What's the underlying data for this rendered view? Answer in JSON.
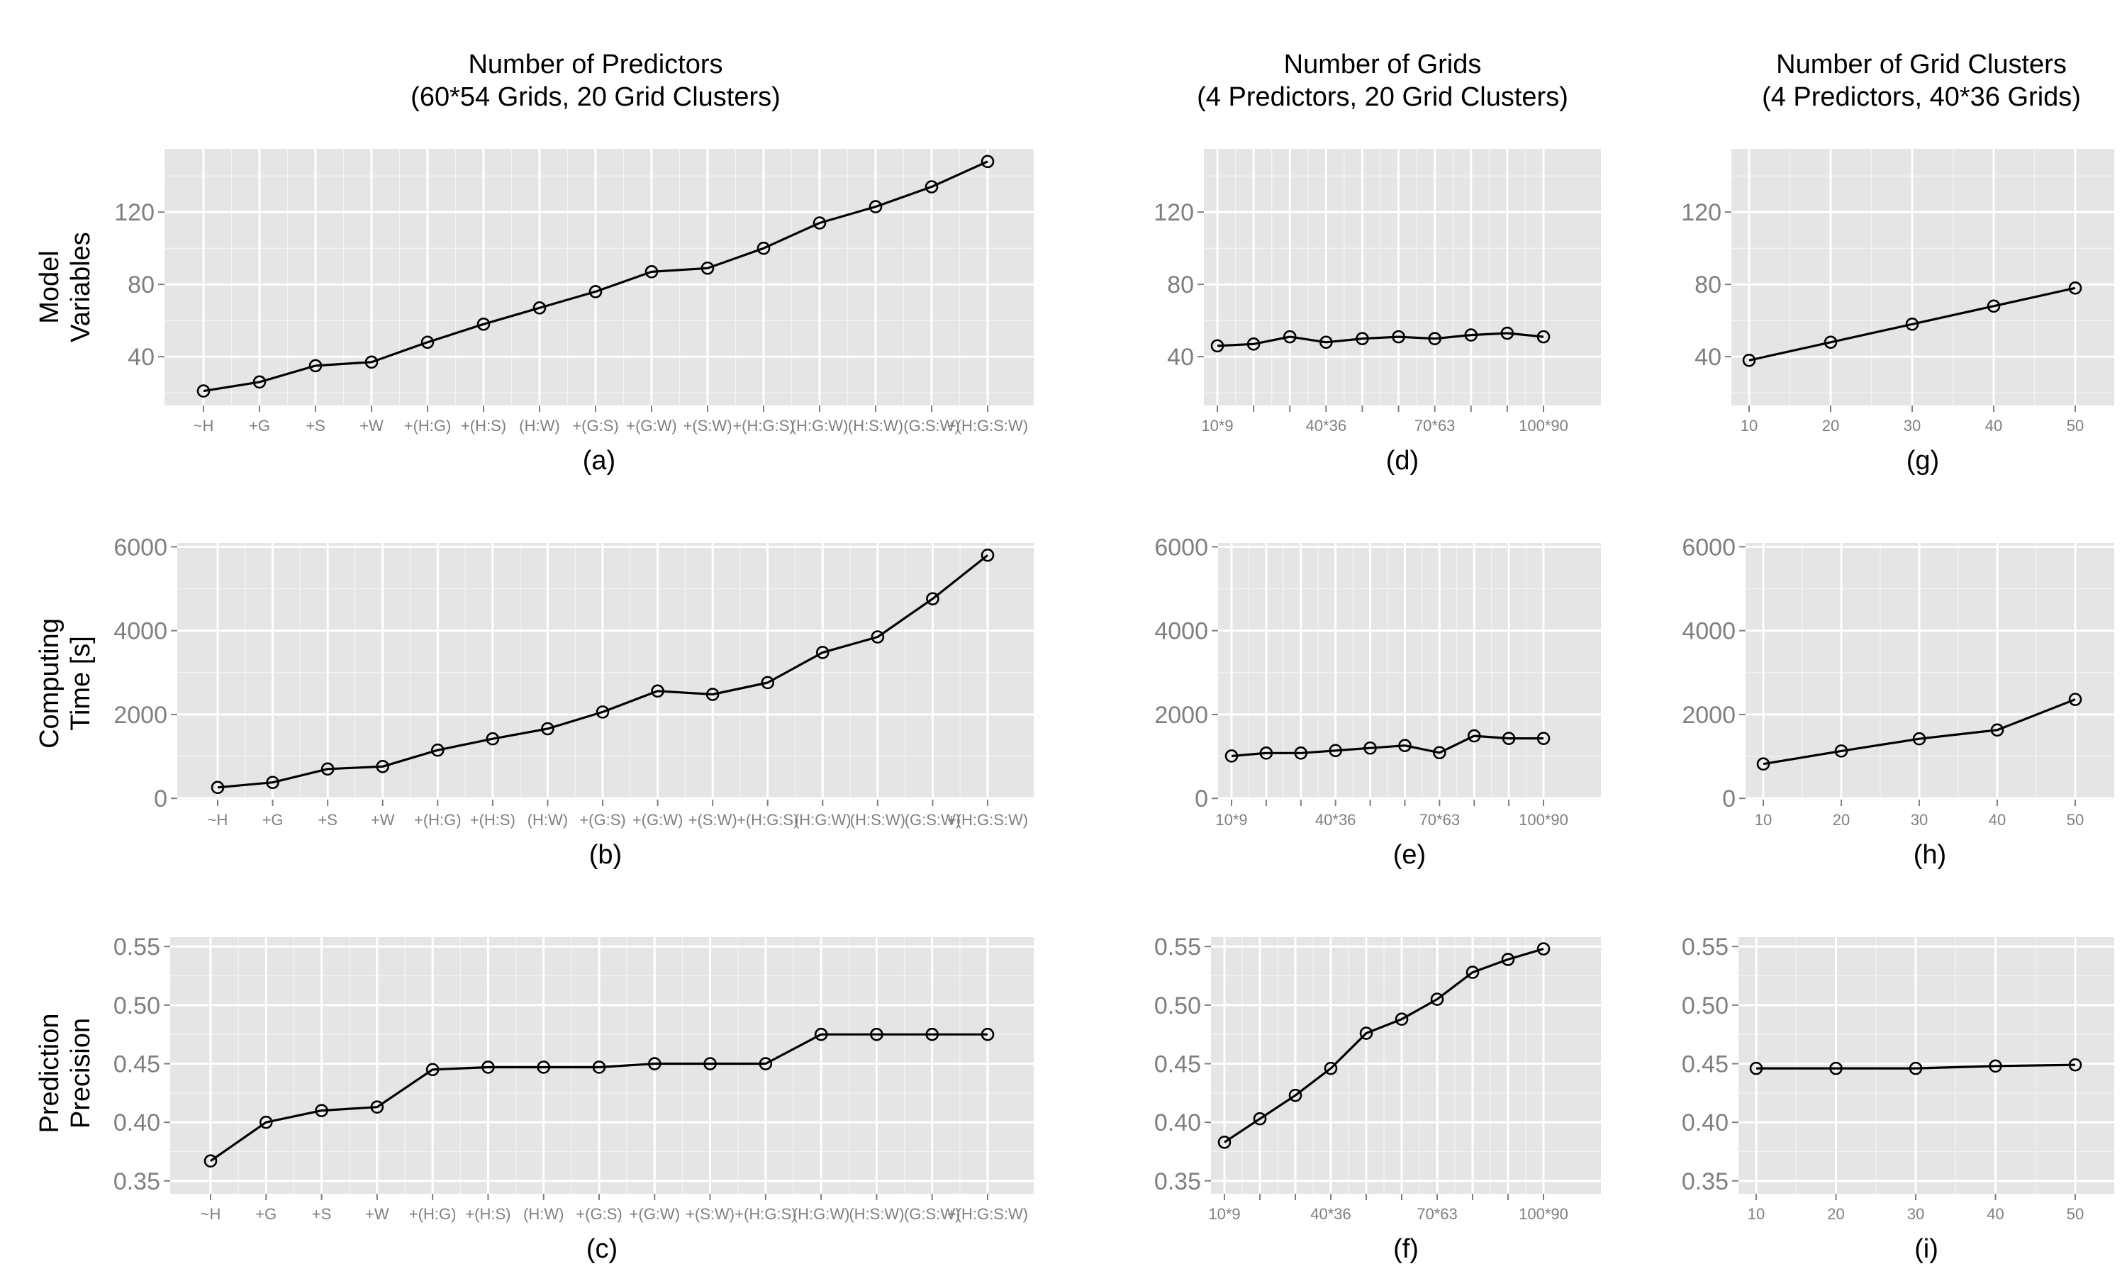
{
  "column_titles": [
    {
      "line1": "Number of Predictors",
      "line2": "(60*54 Grids, 20 Grid Clusters)"
    },
    {
      "line1": "Number of Grids",
      "line2": "(4 Predictors, 20 Grid Clusters)"
    },
    {
      "line1": "Number of Grid Clusters",
      "line2": "(4 Predictors, 40*36 Grids)"
    }
  ],
  "row_labels": [
    {
      "line1": "Model",
      "line2": "Variables"
    },
    {
      "line1": "Computing",
      "line2": "Time [s]"
    },
    {
      "line1": "Prediction",
      "line2": "Precision"
    }
  ],
  "colors": {
    "panel_bg": "#e5e5e5",
    "grid": "#ffffff",
    "line": "#000000",
    "tick_text": "#7f7f7f"
  },
  "chart_data": [
    {
      "id": "a",
      "type": "line",
      "label": "(a)",
      "categories": [
        "~H",
        "+G",
        "+S",
        "+W",
        "+(H:G)",
        "+(H:S)",
        "(H:W)",
        "+(G:S)",
        "+(G:W)",
        "+(S:W)",
        "+(H:G:S)",
        "(H:G:W)",
        "(H:S:W)",
        "(G:S:W)",
        "+(H:G:S:W)"
      ],
      "values": [
        21,
        26,
        35,
        37,
        48,
        58,
        67,
        76,
        87,
        89,
        100,
        114,
        123,
        134,
        148
      ],
      "ylim": [
        13,
        155
      ],
      "yticks": [
        40,
        80,
        120
      ]
    },
    {
      "id": "b",
      "type": "line",
      "label": "(b)",
      "categories": [
        "~H",
        "+G",
        "+S",
        "+W",
        "+(H:G)",
        "+(H:S)",
        "(H:W)",
        "+(G:S)",
        "+(G:W)",
        "+(S:W)",
        "+(H:G:S)",
        "(H:G:W)",
        "(H:S:W)",
        "(G:S:W)",
        "+(H:G:S:W)"
      ],
      "values": [
        260,
        380,
        700,
        760,
        1150,
        1420,
        1660,
        2060,
        2560,
        2480,
        2760,
        3480,
        3850,
        4760,
        5800
      ],
      "ylim": [
        -30,
        6090
      ],
      "yticks": [
        0,
        2000,
        4000,
        6000
      ]
    },
    {
      "id": "c",
      "type": "line",
      "label": "(c)",
      "categories": [
        "~H",
        "+G",
        "+S",
        "+W",
        "+(H:G)",
        "+(H:S)",
        "(H:W)",
        "+(G:S)",
        "+(G:W)",
        "+(S:W)",
        "+(H:G:S)",
        "(H:G:W)",
        "(H:S:W)",
        "(G:S:W)",
        "+(H:G:S:W)"
      ],
      "values": [
        0.367,
        0.4,
        0.41,
        0.413,
        0.445,
        0.447,
        0.447,
        0.447,
        0.45,
        0.45,
        0.45,
        0.475,
        0.475,
        0.475,
        0.475
      ],
      "ylim": [
        0.339,
        0.558
      ],
      "yticks": [
        0.35,
        0.4,
        0.45,
        0.5,
        0.55
      ],
      "ytick_labels": [
        "0.35",
        "0.40",
        "0.45",
        "0.50",
        "0.55"
      ]
    },
    {
      "id": "d",
      "type": "line",
      "label": "(d)",
      "categories": [
        "10*9",
        "",
        "",
        "40*36",
        "",
        "",
        "70*63",
        "",
        "",
        "100*90"
      ],
      "values": [
        46,
        47,
        51,
        48,
        50,
        51,
        50,
        52,
        53,
        51
      ],
      "ylim": [
        13,
        155
      ],
      "yticks": [
        40,
        80,
        120
      ]
    },
    {
      "id": "e",
      "type": "line",
      "label": "(e)",
      "categories": [
        "10*9",
        "",
        "",
        "40*36",
        "",
        "",
        "70*63",
        "",
        "",
        "100*90"
      ],
      "values": [
        1010,
        1080,
        1080,
        1140,
        1200,
        1260,
        1090,
        1490,
        1430,
        1430
      ],
      "ylim": [
        -30,
        6090
      ],
      "yticks": [
        0,
        2000,
        4000,
        6000
      ]
    },
    {
      "id": "f",
      "type": "line",
      "label": "(f)",
      "categories": [
        "10*9",
        "",
        "",
        "40*36",
        "",
        "",
        "70*63",
        "",
        "",
        "100*90"
      ],
      "values": [
        0.383,
        0.403,
        0.423,
        0.446,
        0.476,
        0.488,
        0.505,
        0.528,
        0.539,
        0.548
      ],
      "ylim": [
        0.339,
        0.558
      ],
      "yticks": [
        0.35,
        0.4,
        0.45,
        0.5,
        0.55
      ],
      "ytick_labels": [
        "0.35",
        "0.40",
        "0.45",
        "0.50",
        "0.55"
      ]
    },
    {
      "id": "g",
      "type": "line",
      "label": "(g)",
      "categories": [
        "10",
        "20",
        "30",
        "40",
        "50"
      ],
      "values": [
        38,
        48,
        58,
        68,
        78
      ],
      "ylim": [
        13,
        155
      ],
      "yticks": [
        40,
        80,
        120
      ]
    },
    {
      "id": "h",
      "type": "line",
      "label": "(h)",
      "categories": [
        "10",
        "20",
        "30",
        "40",
        "50"
      ],
      "values": [
        820,
        1130,
        1420,
        1630,
        2360
      ],
      "ylim": [
        -30,
        6090
      ],
      "yticks": [
        0,
        2000,
        4000,
        6000
      ]
    },
    {
      "id": "i",
      "type": "line",
      "label": "(i)",
      "categories": [
        "10",
        "20",
        "30",
        "40",
        "50"
      ],
      "values": [
        0.446,
        0.446,
        0.446,
        0.448,
        0.449
      ],
      "ylim": [
        0.339,
        0.558
      ],
      "yticks": [
        0.35,
        0.4,
        0.45,
        0.5,
        0.55
      ],
      "ytick_labels": [
        "0.35",
        "0.40",
        "0.45",
        "0.50",
        "0.55"
      ]
    }
  ]
}
